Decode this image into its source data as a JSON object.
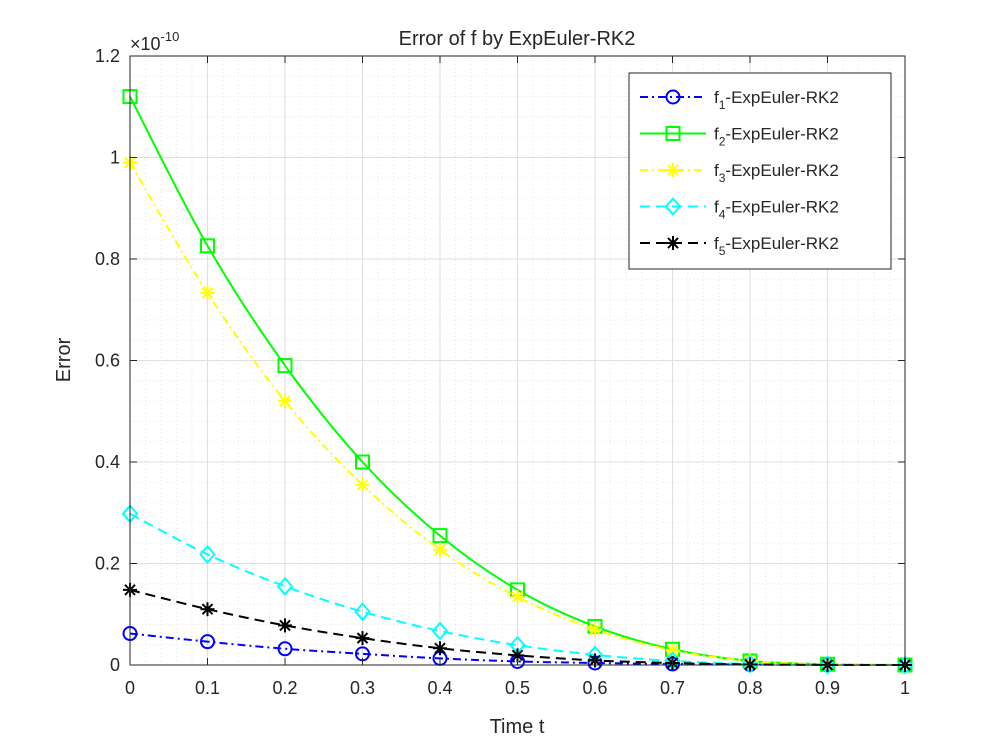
{
  "chart_data": {
    "type": "line",
    "title": "Error of f by ExpEuler-RK2",
    "xlabel": "Time t",
    "ylabel": "Error",
    "y_exponent_label": "×10",
    "y_exponent_power": "-10",
    "xlim": [
      0,
      1
    ],
    "ylim": [
      0,
      1.2
    ],
    "x_ticks": [
      0,
      0.1,
      0.2,
      0.3,
      0.4,
      0.5,
      0.6,
      0.7,
      0.8,
      0.9,
      1
    ],
    "x_tick_labels": [
      "0",
      "0.1",
      "0.2",
      "0.3",
      "0.4",
      "0.5",
      "0.6",
      "0.7",
      "0.8",
      "0.9",
      "1"
    ],
    "y_ticks": [
      0,
      0.2,
      0.4,
      0.6,
      0.8,
      1,
      1.2
    ],
    "y_tick_labels": [
      "0",
      "0.2",
      "0.4",
      "0.6",
      "0.8",
      "1",
      "1.2"
    ],
    "grid": true,
    "minor_grid": true,
    "legend_position": "top-right",
    "x": [
      0,
      0.1,
      0.2,
      0.3,
      0.4,
      0.5,
      0.6,
      0.7,
      0.8,
      0.9,
      1.0
    ],
    "series": [
      {
        "name_base": "f",
        "name_sub": "1",
        "name_rest": "-ExpEuler-RK2",
        "color": "#0000ff",
        "dash": "dashdot",
        "marker": "circle",
        "values": [
          0.062,
          0.046,
          0.032,
          0.022,
          0.013,
          0.007,
          0.004,
          0.002,
          0.001,
          0.0003,
          0.0
        ]
      },
      {
        "name_base": "f",
        "name_sub": "2",
        "name_rest": "-ExpEuler-RK2",
        "color": "#00ff00",
        "dash": "solid",
        "marker": "square",
        "values": [
          1.12,
          0.826,
          0.59,
          0.4,
          0.255,
          0.148,
          0.076,
          0.031,
          0.008,
          0.0015,
          0.0
        ]
      },
      {
        "name_base": "f",
        "name_sub": "3",
        "name_rest": "-ExpEuler-RK2",
        "color": "#ffff00",
        "dash": "dashdot",
        "marker": "asterisk",
        "values": [
          0.99,
          0.733,
          0.52,
          0.355,
          0.227,
          0.134,
          0.07,
          0.029,
          0.008,
          0.0015,
          0.0
        ]
      },
      {
        "name_base": "f",
        "name_sub": "4",
        "name_rest": "-ExpEuler-RK2",
        "color": "#00ffff",
        "dash": "dashed",
        "marker": "diamond",
        "values": [
          0.298,
          0.218,
          0.155,
          0.105,
          0.067,
          0.039,
          0.02,
          0.008,
          0.002,
          0.0004,
          0.0
        ]
      },
      {
        "name_base": "f",
        "name_sub": "5",
        "name_rest": "-ExpEuler-RK2",
        "color": "#000000",
        "dash": "dashed",
        "marker": "asterisk",
        "values": [
          0.148,
          0.11,
          0.078,
          0.053,
          0.033,
          0.019,
          0.009,
          0.004,
          0.001,
          0.0002,
          0.0
        ]
      }
    ]
  }
}
